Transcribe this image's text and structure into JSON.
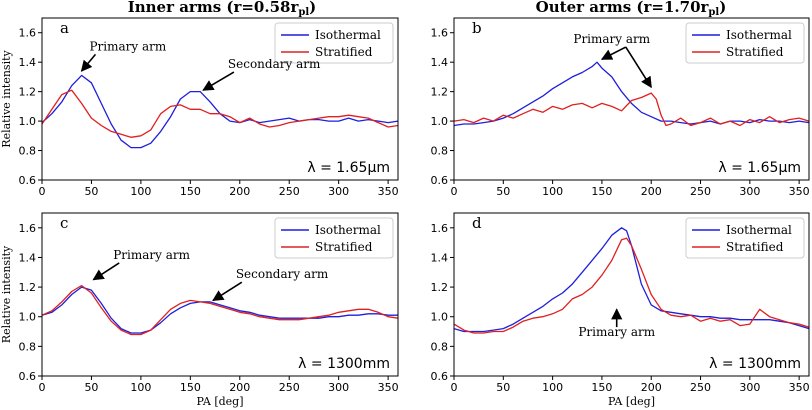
{
  "chart_data": [
    {
      "type": "line",
      "panel": "a",
      "title": "Inner arms (r=0.58r",
      "title_sub": "pl",
      "title_close": ")",
      "ylabel": "Relative intensity",
      "xlabel": "",
      "xlim": [
        0,
        360
      ],
      "ylim": [
        0.6,
        1.7
      ],
      "xticks": [
        "0",
        "50",
        "100",
        "150",
        "200",
        "250",
        "300",
        "350"
      ],
      "yticks": [
        "0.6",
        "0.8",
        "1.0",
        "1.2",
        "1.4",
        "1.6"
      ],
      "legend": [
        "Isothermal",
        "Stratified"
      ],
      "wavelength": "λ = 1.65μm",
      "annotations": [
        {
          "text": "Primary arm",
          "tx": 48,
          "ty": 1.48,
          "ax": 40,
          "ay": 1.34
        },
        {
          "text": "Secondary arm",
          "tx": 188,
          "ty": 1.36,
          "ax": 163,
          "ay": 1.21
        }
      ],
      "series": [
        {
          "name": "Isothermal",
          "color": "#1f1fdd",
          "x": [
            0,
            10,
            20,
            30,
            40,
            50,
            60,
            70,
            80,
            90,
            100,
            110,
            120,
            130,
            140,
            150,
            160,
            170,
            180,
            190,
            200,
            210,
            220,
            230,
            240,
            250,
            260,
            270,
            280,
            290,
            300,
            310,
            320,
            330,
            340,
            350,
            360
          ],
          "y": [
            0.99,
            1.05,
            1.13,
            1.24,
            1.31,
            1.26,
            1.12,
            0.98,
            0.87,
            0.82,
            0.82,
            0.85,
            0.93,
            1.03,
            1.15,
            1.2,
            1.2,
            1.13,
            1.05,
            1.0,
            0.99,
            1.01,
            0.99,
            1.0,
            1.01,
            1.02,
            1.0,
            1.01,
            1.01,
            1.0,
            1.0,
            1.02,
            1.0,
            1.01,
            1.0,
            0.99,
            1.0
          ]
        },
        {
          "name": "Stratified",
          "color": "#e02020",
          "x": [
            0,
            10,
            20,
            30,
            40,
            50,
            60,
            70,
            80,
            90,
            100,
            110,
            120,
            130,
            140,
            150,
            160,
            170,
            180,
            190,
            200,
            210,
            220,
            230,
            240,
            250,
            260,
            270,
            280,
            290,
            300,
            310,
            320,
            330,
            340,
            350,
            360
          ],
          "y": [
            0.98,
            1.08,
            1.18,
            1.21,
            1.12,
            1.02,
            0.97,
            0.93,
            0.91,
            0.89,
            0.9,
            0.94,
            1.05,
            1.1,
            1.11,
            1.08,
            1.08,
            1.05,
            1.05,
            1.03,
            0.99,
            1.02,
            0.98,
            0.96,
            0.97,
            0.99,
            1.0,
            1.01,
            1.02,
            1.03,
            1.03,
            1.04,
            1.03,
            1.02,
            0.99,
            0.96,
            0.97
          ]
        }
      ]
    },
    {
      "type": "line",
      "panel": "b",
      "title": "Outer arms (r=1.70r",
      "title_sub": "pl",
      "title_close": ")",
      "ylabel": "",
      "xlabel": "",
      "xlim": [
        0,
        360
      ],
      "ylim": [
        0.6,
        1.7
      ],
      "xticks": [
        "0",
        "50",
        "100",
        "150",
        "200",
        "250",
        "300",
        "350"
      ],
      "yticks": [
        "0.6",
        "0.8",
        "1.0",
        "1.2",
        "1.4",
        "1.6"
      ],
      "legend": [
        "Isothermal",
        "Stratified"
      ],
      "wavelength": "λ = 1.65μm",
      "annotations": [
        {
          "text": "Primary arm",
          "tx": 160,
          "ty": 1.53,
          "ax": 150,
          "ay": 1.42,
          "ax2": 200,
          "ay2": 1.23
        }
      ],
      "series": [
        {
          "name": "Isothermal",
          "color": "#1f1fdd",
          "x": [
            0,
            10,
            20,
            30,
            40,
            50,
            60,
            70,
            80,
            90,
            100,
            110,
            120,
            130,
            140,
            145,
            150,
            160,
            170,
            180,
            190,
            200,
            210,
            220,
            230,
            240,
            250,
            260,
            270,
            280,
            290,
            300,
            310,
            320,
            330,
            340,
            350,
            360
          ],
          "y": [
            0.97,
            0.98,
            0.98,
            0.99,
            1.0,
            1.02,
            1.05,
            1.09,
            1.13,
            1.17,
            1.22,
            1.26,
            1.3,
            1.33,
            1.37,
            1.4,
            1.36,
            1.3,
            1.2,
            1.12,
            1.06,
            1.03,
            1.0,
            1.0,
            0.99,
            0.98,
            0.99,
            1.0,
            0.98,
            1.0,
            1.0,
            0.99,
            1.01,
            1.0,
            1.0,
            0.99,
            1.0,
            0.99
          ]
        },
        {
          "name": "Stratified",
          "color": "#e02020",
          "x": [
            0,
            10,
            20,
            30,
            40,
            50,
            60,
            70,
            80,
            90,
            100,
            110,
            120,
            130,
            140,
            150,
            160,
            170,
            180,
            190,
            200,
            205,
            210,
            215,
            220,
            230,
            240,
            250,
            260,
            270,
            280,
            290,
            300,
            310,
            320,
            330,
            340,
            350,
            360
          ],
          "y": [
            1.0,
            1.01,
            0.99,
            1.02,
            1.0,
            1.04,
            1.02,
            1.05,
            1.08,
            1.06,
            1.1,
            1.08,
            1.11,
            1.12,
            1.09,
            1.12,
            1.1,
            1.07,
            1.14,
            1.16,
            1.19,
            1.15,
            1.04,
            0.97,
            0.98,
            1.02,
            0.97,
            0.99,
            1.02,
            0.98,
            1.0,
            0.97,
            1.01,
            0.99,
            1.03,
            0.99,
            1.01,
            1.02,
            1.0
          ]
        }
      ]
    },
    {
      "type": "line",
      "panel": "c",
      "ylabel": "Relative intensity",
      "xlabel": "PA [deg]",
      "xlim": [
        0,
        360
      ],
      "ylim": [
        0.6,
        1.7
      ],
      "xticks": [
        "0",
        "50",
        "100",
        "150",
        "200",
        "250",
        "300",
        "350"
      ],
      "yticks": [
        "0.6",
        "0.8",
        "1.0",
        "1.2",
        "1.4",
        "1.6"
      ],
      "legend": [
        "Isothermal",
        "Stratified"
      ],
      "wavelength": "λ = 1300mm",
      "annotations": [
        {
          "text": "Primary arm",
          "tx": 72,
          "ty": 1.39,
          "ax": 52,
          "ay": 1.25
        },
        {
          "text": "Secondary arm",
          "tx": 196,
          "ty": 1.26,
          "ax": 173,
          "ay": 1.11
        }
      ],
      "series": [
        {
          "name": "Isothermal",
          "color": "#1f1fdd",
          "x": [
            0,
            10,
            20,
            30,
            40,
            50,
            60,
            70,
            80,
            90,
            100,
            110,
            120,
            130,
            140,
            150,
            160,
            170,
            180,
            190,
            200,
            210,
            220,
            230,
            240,
            250,
            260,
            270,
            280,
            290,
            300,
            310,
            320,
            330,
            340,
            350,
            360
          ],
          "y": [
            1.01,
            1.03,
            1.08,
            1.15,
            1.2,
            1.18,
            1.09,
            0.99,
            0.92,
            0.89,
            0.89,
            0.91,
            0.96,
            1.02,
            1.06,
            1.09,
            1.1,
            1.1,
            1.08,
            1.06,
            1.04,
            1.03,
            1.01,
            1.0,
            0.99,
            0.99,
            0.99,
            0.99,
            0.99,
            1.0,
            1.0,
            1.01,
            1.01,
            1.02,
            1.02,
            1.01,
            1.01
          ]
        },
        {
          "name": "Stratified",
          "color": "#e02020",
          "x": [
            0,
            10,
            20,
            30,
            40,
            50,
            60,
            70,
            80,
            90,
            100,
            110,
            120,
            130,
            140,
            150,
            160,
            170,
            180,
            190,
            200,
            210,
            220,
            230,
            240,
            250,
            260,
            270,
            280,
            290,
            300,
            310,
            320,
            330,
            340,
            350,
            360
          ],
          "y": [
            1.01,
            1.04,
            1.1,
            1.17,
            1.21,
            1.16,
            1.06,
            0.97,
            0.91,
            0.88,
            0.88,
            0.91,
            0.98,
            1.05,
            1.09,
            1.11,
            1.1,
            1.09,
            1.07,
            1.05,
            1.03,
            1.02,
            1.0,
            0.99,
            0.98,
            0.98,
            0.98,
            0.99,
            1.0,
            1.01,
            1.03,
            1.04,
            1.05,
            1.05,
            1.03,
            1.0,
            0.99
          ]
        }
      ]
    },
    {
      "type": "line",
      "panel": "d",
      "ylabel": "",
      "xlabel": "PA [deg]",
      "xlim": [
        0,
        360
      ],
      "ylim": [
        0.6,
        1.7
      ],
      "xticks": [
        "0",
        "50",
        "100",
        "150",
        "200",
        "250",
        "300",
        "350"
      ],
      "yticks": [
        "0.6",
        "0.8",
        "1.0",
        "1.2",
        "1.4",
        "1.6"
      ],
      "legend": [
        "Isothermal",
        "Stratified"
      ],
      "wavelength": "λ = 1300mm",
      "annotations": [
        {
          "text": "Primary arm",
          "tx": 165,
          "ty": 0.87,
          "ax": 165,
          "ay": 1.05,
          "from_x": 165,
          "from_y": 0.93
        }
      ],
      "series": [
        {
          "name": "Isothermal",
          "color": "#1f1fdd",
          "x": [
            0,
            10,
            20,
            30,
            40,
            50,
            60,
            70,
            80,
            90,
            100,
            110,
            120,
            130,
            140,
            150,
            160,
            170,
            175,
            180,
            190,
            200,
            210,
            220,
            230,
            240,
            250,
            260,
            270,
            280,
            290,
            300,
            310,
            320,
            330,
            340,
            350,
            360
          ],
          "y": [
            0.92,
            0.9,
            0.9,
            0.9,
            0.91,
            0.92,
            0.95,
            0.99,
            1.03,
            1.07,
            1.12,
            1.16,
            1.22,
            1.3,
            1.38,
            1.46,
            1.55,
            1.6,
            1.58,
            1.48,
            1.22,
            1.08,
            1.04,
            1.03,
            1.02,
            1.01,
            1.0,
            1.0,
            0.99,
            0.99,
            0.98,
            0.98,
            0.98,
            0.98,
            0.97,
            0.96,
            0.94,
            0.92
          ]
        },
        {
          "name": "Stratified",
          "color": "#e02020",
          "x": [
            0,
            10,
            20,
            30,
            40,
            50,
            60,
            70,
            80,
            90,
            100,
            110,
            120,
            130,
            140,
            150,
            160,
            170,
            175,
            180,
            190,
            200,
            210,
            220,
            230,
            240,
            250,
            260,
            270,
            280,
            290,
            300,
            310,
            320,
            330,
            340,
            350,
            360
          ],
          "y": [
            0.95,
            0.91,
            0.89,
            0.89,
            0.9,
            0.9,
            0.93,
            0.97,
            0.99,
            1.0,
            1.02,
            1.05,
            1.12,
            1.15,
            1.2,
            1.28,
            1.38,
            1.52,
            1.53,
            1.48,
            1.32,
            1.15,
            1.05,
            1.01,
            1.0,
            1.01,
            0.97,
            0.99,
            0.97,
            0.98,
            0.94,
            0.95,
            1.05,
            1.0,
            0.98,
            0.96,
            0.95,
            0.93
          ]
        }
      ]
    }
  ]
}
